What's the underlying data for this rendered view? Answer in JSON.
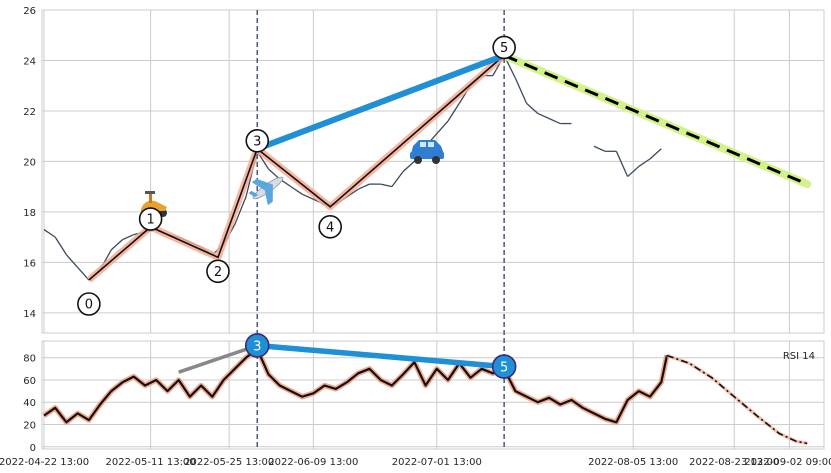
{
  "chart_data": [
    {
      "type": "line",
      "panel": "price",
      "ylim": [
        13.2,
        26
      ],
      "yticks": [
        "14",
        "16",
        "18",
        "20",
        "22",
        "24",
        "26"
      ],
      "grid": true,
      "x_start": "2022-04-22 13:00",
      "x_end": "2022-09-08 13:00",
      "vertical_markers": [
        "2022-05-30 13:00",
        "2022-07-13 13:00"
      ],
      "wave_points": [
        {
          "label": "0",
          "date": "2022-04-30 13:00",
          "y": 15.3
        },
        {
          "label": "1",
          "date": "2022-05-11 13:00",
          "y": 17.4
        },
        {
          "label": "2",
          "date": "2022-05-23 13:00",
          "y": 16.2
        },
        {
          "label": "3",
          "date": "2022-05-30 13:00",
          "y": 20.5
        },
        {
          "label": "4",
          "date": "2022-06-12 13:00",
          "y": 18.2
        },
        {
          "label": "5",
          "date": "2022-07-13 13:00",
          "y": 24.2
        }
      ],
      "divergence_line": {
        "from": "3",
        "to": "5"
      },
      "projection": {
        "from": {
          "date": "2022-07-13 13:00",
          "y": 24.2
        },
        "to": {
          "date": "2022-09-05 13:00",
          "y": 19.1
        }
      },
      "price": [
        {
          "date": "2022-04-22 13:00",
          "y": 17.3
        },
        {
          "date": "2022-04-24 13:00",
          "y": 17.0
        },
        {
          "date": "2022-04-26 13:00",
          "y": 16.3
        },
        {
          "date": "2022-04-28 13:00",
          "y": 15.8
        },
        {
          "date": "2022-04-30 13:00",
          "y": 15.3
        },
        {
          "date": "2022-05-02 13:00",
          "y": 15.7
        },
        {
          "date": "2022-05-04 13:00",
          "y": 16.5
        },
        {
          "date": "2022-05-06 13:00",
          "y": 16.9
        },
        {
          "date": "2022-05-08 13:00",
          "y": 17.1
        },
        {
          "date": "2022-05-10 13:00",
          "y": 17.2
        },
        {
          "date": "2022-05-12 13:00",
          "y": 17.3
        },
        {
          "date": "2022-05-14 13:00",
          "y": 17.1
        },
        {
          "date": "2022-05-16 13:00",
          "y": 17.0
        },
        {
          "date": "2022-05-18 13:00",
          "y": 16.8
        },
        {
          "date": "2022-05-20 13:00",
          "y": 16.6
        },
        {
          "date": "2022-05-22 13:00",
          "y": 16.3
        },
        {
          "date": "2022-05-24 13:00",
          "y": 16.7
        },
        {
          "date": "2022-05-26 13:00",
          "y": 17.5
        },
        {
          "date": "2022-05-28 13:00",
          "y": 18.6
        },
        {
          "date": "2022-05-30 13:00",
          "y": 20.4
        },
        {
          "date": "2022-06-01 13:00",
          "y": 19.7
        },
        {
          "date": "2022-06-03 13:00",
          "y": 19.3
        },
        {
          "date": "2022-06-05 13:00",
          "y": 19.0
        },
        {
          "date": "2022-06-07 13:00",
          "y": 18.7
        },
        {
          "date": "2022-06-09 13:00",
          "y": 18.5
        },
        {
          "date": "2022-06-11 13:00",
          "y": 18.3
        },
        {
          "date": "2022-06-13 13:00",
          "y": 18.3
        },
        {
          "date": "2022-06-15 13:00",
          "y": 18.6
        },
        {
          "date": "2022-06-17 13:00",
          "y": 18.9
        },
        {
          "date": "2022-06-19 13:00",
          "y": 19.1
        },
        {
          "date": "2022-06-21 13:00",
          "y": 19.1
        },
        {
          "date": "2022-06-23 13:00",
          "y": 19.0
        },
        {
          "date": "2022-06-25 13:00",
          "y": 19.6
        },
        {
          "date": "2022-06-27 13:00",
          "y": 20.0
        },
        {
          "date": "2022-06-29 13:00",
          "y": 20.6
        },
        {
          "date": "2022-07-01 13:00",
          "y": 21.1
        },
        {
          "date": "2022-07-03 13:00",
          "y": 21.6
        },
        {
          "date": "2022-07-05 13:00",
          "y": 22.3
        },
        {
          "date": "2022-07-07 13:00",
          "y": 23.0
        },
        {
          "date": "2022-07-09 13:00",
          "y": 23.4
        },
        {
          "date": "2022-07-11 13:00",
          "y": 23.4
        },
        {
          "date": "2022-07-13 13:00",
          "y": 24.2
        },
        {
          "date": "2022-07-15 13:00",
          "y": 23.3
        },
        {
          "date": "2022-07-17 13:00",
          "y": 22.3
        },
        {
          "date": "2022-07-19 13:00",
          "y": 21.9
        },
        {
          "date": "2022-07-21 13:00",
          "y": 21.7
        },
        {
          "date": "2022-07-23 13:00",
          "y": 21.5
        },
        {
          "date": "2022-07-25 13:00",
          "y": 21.5
        },
        {
          "date": "2022-07-29 13:00",
          "y": 20.6
        },
        {
          "date": "2022-07-31 13:00",
          "y": 20.4
        },
        {
          "date": "2022-08-02 13:00",
          "y": 20.4
        },
        {
          "date": "2022-08-04 13:00",
          "y": 19.4
        },
        {
          "date": "2022-08-06 13:00",
          "y": 19.8
        },
        {
          "date": "2022-08-08 13:00",
          "y": 20.1
        },
        {
          "date": "2022-08-10 13:00",
          "y": 20.5
        }
      ]
    },
    {
      "type": "line",
      "panel": "rsi",
      "series": [
        {
          "name": "RSI 14"
        }
      ],
      "ylim": [
        -2,
        95
      ],
      "yticks": [
        "0",
        "20",
        "40",
        "60",
        "80"
      ],
      "xticks": [
        "2022-04-22 13:00",
        "2022-05-11 13:00",
        "2022-05-25 13:00",
        "2022-06-09 13:00",
        "2022-07-01 13:00",
        "2022-08-05 13:00",
        "2022-08-23 13:00",
        "2022-09-02 09:00"
      ],
      "markers": [
        {
          "label": "3",
          "date": "2022-05-30 13:00",
          "y": 91
        },
        {
          "label": "5",
          "date": "2022-07-13 13:00",
          "y": 72
        }
      ],
      "gray_line": {
        "from": {
          "date": "2022-05-16 13:00",
          "y": 67
        },
        "to": {
          "date": "2022-05-30 13:00",
          "y": 91
        }
      },
      "rsi": [
        {
          "date": "2022-04-22 13:00",
          "y": 28
        },
        {
          "date": "2022-04-24 13:00",
          "y": 35
        },
        {
          "date": "2022-04-26 13:00",
          "y": 22
        },
        {
          "date": "2022-04-28 13:00",
          "y": 30
        },
        {
          "date": "2022-04-30 13:00",
          "y": 24
        },
        {
          "date": "2022-05-02 13:00",
          "y": 38
        },
        {
          "date": "2022-05-04 13:00",
          "y": 50
        },
        {
          "date": "2022-05-06 13:00",
          "y": 58
        },
        {
          "date": "2022-05-08 13:00",
          "y": 63
        },
        {
          "date": "2022-05-10 13:00",
          "y": 55
        },
        {
          "date": "2022-05-12 13:00",
          "y": 60
        },
        {
          "date": "2022-05-14 13:00",
          "y": 50
        },
        {
          "date": "2022-05-16 13:00",
          "y": 60
        },
        {
          "date": "2022-05-18 13:00",
          "y": 45
        },
        {
          "date": "2022-05-20 13:00",
          "y": 55
        },
        {
          "date": "2022-05-22 13:00",
          "y": 45
        },
        {
          "date": "2022-05-24 13:00",
          "y": 60
        },
        {
          "date": "2022-05-26 13:00",
          "y": 70
        },
        {
          "date": "2022-05-28 13:00",
          "y": 80
        },
        {
          "date": "2022-05-30 13:00",
          "y": 88
        },
        {
          "date": "2022-06-01 13:00",
          "y": 65
        },
        {
          "date": "2022-06-03 13:00",
          "y": 55
        },
        {
          "date": "2022-06-05 13:00",
          "y": 50
        },
        {
          "date": "2022-06-07 13:00",
          "y": 45
        },
        {
          "date": "2022-06-09 13:00",
          "y": 48
        },
        {
          "date": "2022-06-11 13:00",
          "y": 55
        },
        {
          "date": "2022-06-13 13:00",
          "y": 52
        },
        {
          "date": "2022-06-15 13:00",
          "y": 58
        },
        {
          "date": "2022-06-17 13:00",
          "y": 66
        },
        {
          "date": "2022-06-19 13:00",
          "y": 70
        },
        {
          "date": "2022-06-21 13:00",
          "y": 60
        },
        {
          "date": "2022-06-23 13:00",
          "y": 55
        },
        {
          "date": "2022-06-25 13:00",
          "y": 65
        },
        {
          "date": "2022-06-27 13:00",
          "y": 76
        },
        {
          "date": "2022-06-29 13:00",
          "y": 55
        },
        {
          "date": "2022-07-01 13:00",
          "y": 70
        },
        {
          "date": "2022-07-03 13:00",
          "y": 60
        },
        {
          "date": "2022-07-05 13:00",
          "y": 75
        },
        {
          "date": "2022-07-07 13:00",
          "y": 62
        },
        {
          "date": "2022-07-09 13:00",
          "y": 70
        },
        {
          "date": "2022-07-11 13:00",
          "y": 66
        },
        {
          "date": "2022-07-13 13:00",
          "y": 70
        },
        {
          "date": "2022-07-15 13:00",
          "y": 50
        },
        {
          "date": "2022-07-17 13:00",
          "y": 45
        },
        {
          "date": "2022-07-19 13:00",
          "y": 40
        },
        {
          "date": "2022-07-21 13:00",
          "y": 44
        },
        {
          "date": "2022-07-23 13:00",
          "y": 38
        },
        {
          "date": "2022-07-25 13:00",
          "y": 42
        },
        {
          "date": "2022-07-27 13:00",
          "y": 35
        },
        {
          "date": "2022-07-29 13:00",
          "y": 30
        },
        {
          "date": "2022-07-31 13:00",
          "y": 25
        },
        {
          "date": "2022-08-02 13:00",
          "y": 22
        },
        {
          "date": "2022-08-04 13:00",
          "y": 42
        },
        {
          "date": "2022-08-06 13:00",
          "y": 50
        },
        {
          "date": "2022-08-08 13:00",
          "y": 45
        },
        {
          "date": "2022-08-10 13:00",
          "y": 58
        },
        {
          "date": "2022-08-11 13:00",
          "y": 82
        }
      ],
      "rsi_forecast": [
        {
          "date": "2022-08-11 13:00",
          "y": 82
        },
        {
          "date": "2022-08-15 13:00",
          "y": 75
        },
        {
          "date": "2022-08-19 13:00",
          "y": 62
        },
        {
          "date": "2022-08-23 13:00",
          "y": 45
        },
        {
          "date": "2022-08-27 13:00",
          "y": 28
        },
        {
          "date": "2022-08-31 13:00",
          "y": 12
        },
        {
          "date": "2022-09-03 13:00",
          "y": 5
        },
        {
          "date": "2022-09-05 13:00",
          "y": 3
        }
      ]
    }
  ]
}
